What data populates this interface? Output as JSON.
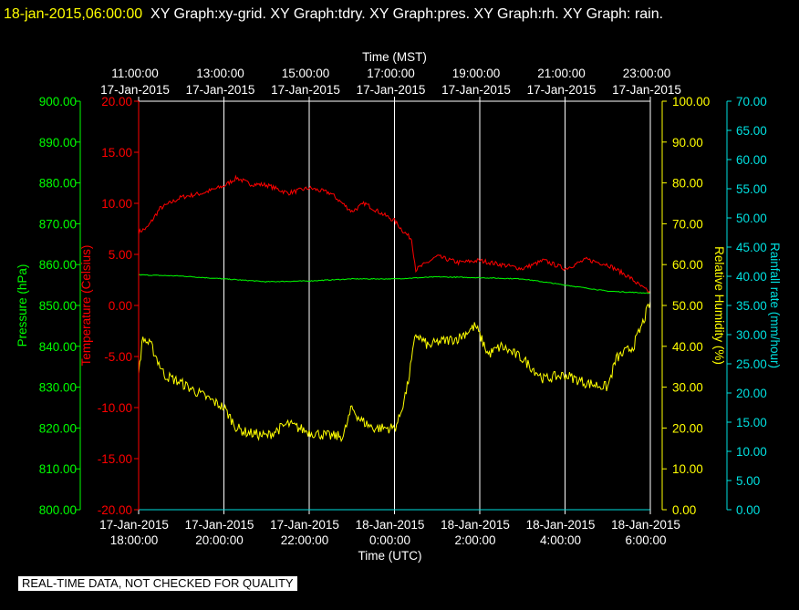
{
  "header": {
    "timestamp": "18-jan-2015,06:00:00",
    "titles": "XY Graph:xy-grid.  XY Graph:tdry.  XY Graph:pres.  XY Graph:rh.  XY Graph: rain."
  },
  "footer_note": "REAL-TIME DATA, NOT CHECKED FOR QUALITY",
  "colors": {
    "background": "#000000",
    "grid": "#ffffff",
    "temperature": "#ff0000",
    "pressure": "#00ff00",
    "humidity": "#ffff00",
    "rain": "#00e0e0"
  },
  "chart_data": {
    "type": "line",
    "top_axis": {
      "title": "Time (MST)",
      "ticks": [
        {
          "time": "11:00:00",
          "date": "17-Jan-2015"
        },
        {
          "time": "13:00:00",
          "date": "17-Jan-2015"
        },
        {
          "time": "15:00:00",
          "date": "17-Jan-2015"
        },
        {
          "time": "17:00:00",
          "date": "17-Jan-2015"
        },
        {
          "time": "19:00:00",
          "date": "17-Jan-2015"
        },
        {
          "time": "21:00:00",
          "date": "17-Jan-2015"
        },
        {
          "time": "23:00:00",
          "date": "17-Jan-2015"
        }
      ]
    },
    "bottom_axis": {
      "title": "Time (UTC)",
      "ticks": [
        {
          "date": "17-Jan-2015",
          "time": "18:00:00"
        },
        {
          "date": "17-Jan-2015",
          "time": "20:00:00"
        },
        {
          "date": "17-Jan-2015",
          "time": "22:00:00"
        },
        {
          "date": "18-Jan-2015",
          "time": "0:00:00"
        },
        {
          "date": "18-Jan-2015",
          "time": "2:00:00"
        },
        {
          "date": "18-Jan-2015",
          "time": "4:00:00"
        },
        {
          "date": "18-Jan-2015",
          "time": "6:00:00"
        }
      ]
    },
    "x_range_hours_utc": [
      18,
      30
    ],
    "axes": {
      "pressure": {
        "label": "Pressure (hPa)",
        "range": [
          800,
          900
        ],
        "ticks": [
          "900.00",
          "890.00",
          "880.00",
          "870.00",
          "860.00",
          "850.00",
          "840.00",
          "830.00",
          "820.00",
          "810.00",
          "800.00"
        ]
      },
      "temperature": {
        "label": "Temperature (Celsius)",
        "range": [
          -20,
          20
        ],
        "ticks": [
          "20.00",
          "15.00",
          "10.00",
          "5.00",
          "0.00",
          "-5.00",
          "-10.00",
          "-15.00",
          "-20.00"
        ]
      },
      "humidity": {
        "label": "Relative Humidity (%)",
        "range": [
          0,
          100
        ],
        "ticks": [
          "100.00",
          "90.00",
          "80.00",
          "70.00",
          "60.00",
          "50.00",
          "40.00",
          "30.00",
          "20.00",
          "10.00",
          "0.00"
        ]
      },
      "rain": {
        "label": "Rainfall rate (mm/hour)",
        "range": [
          0,
          70
        ],
        "ticks": [
          "70.00",
          "65.00",
          "60.00",
          "55.00",
          "50.00",
          "45.00",
          "40.00",
          "35.00",
          "30.00",
          "25.00",
          "20.00",
          "15.00",
          "10.00",
          "5.00",
          "0.00"
        ]
      }
    },
    "series": [
      {
        "name": "tdry",
        "axis": "temperature",
        "x": [
          18.0,
          18.2,
          18.5,
          19.0,
          19.5,
          20.0,
          20.3,
          20.6,
          21.0,
          21.5,
          22.0,
          22.5,
          23.0,
          23.3,
          23.7,
          24.0,
          24.2,
          24.4,
          24.5,
          25.0,
          25.5,
          26.0,
          26.5,
          27.0,
          27.5,
          28.0,
          28.5,
          29.0,
          29.5,
          29.8,
          30.0
        ],
        "y": [
          7.2,
          7.6,
          9.5,
          10.6,
          11.0,
          11.7,
          12.5,
          11.9,
          11.8,
          11.0,
          11.5,
          11.0,
          9.2,
          10.0,
          9.0,
          8.3,
          7.3,
          6.5,
          3.5,
          4.8,
          4.2,
          4.4,
          4.0,
          3.6,
          4.4,
          3.6,
          4.5,
          4.0,
          2.8,
          1.8,
          1.2
        ]
      },
      {
        "name": "pres",
        "axis": "pressure",
        "x": [
          18.0,
          19.0,
          20.0,
          21.0,
          22.0,
          23.0,
          24.0,
          25.0,
          26.0,
          27.0,
          28.0,
          29.0,
          30.0
        ],
        "y": [
          857.5,
          857.2,
          856.5,
          855.8,
          856.0,
          856.5,
          856.5,
          857.0,
          856.8,
          856.5,
          855.0,
          853.5,
          853.0
        ]
      },
      {
        "name": "rh",
        "axis": "humidity",
        "x": [
          18.0,
          18.1,
          18.3,
          18.6,
          19.0,
          19.5,
          20.0,
          20.3,
          20.5,
          21.0,
          21.5,
          22.0,
          22.5,
          22.8,
          23.0,
          23.2,
          23.5,
          24.0,
          24.1,
          24.3,
          24.5,
          24.8,
          25.0,
          25.5,
          25.9,
          26.2,
          26.5,
          27.0,
          27.5,
          28.0,
          28.5,
          29.0,
          29.2,
          29.6,
          29.8,
          30.0
        ],
        "y": [
          34,
          42,
          40,
          33,
          31,
          28,
          25,
          20,
          19,
          18,
          21,
          19,
          18,
          18,
          25,
          22,
          20,
          20,
          22,
          30,
          43,
          40,
          41,
          42,
          45,
          38,
          40,
          37,
          32,
          33,
          31,
          30,
          37,
          40,
          45,
          51
        ]
      },
      {
        "name": "rain",
        "axis": "rain",
        "x": [
          18.0,
          30.0
        ],
        "y": [
          0,
          0
        ]
      }
    ]
  }
}
